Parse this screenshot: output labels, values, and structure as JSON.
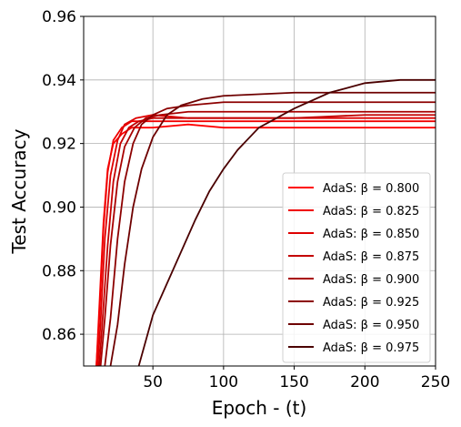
{
  "chart_data": {
    "type": "line",
    "xlabel": "Epoch - (t)",
    "ylabel": "Test Accuracy",
    "xlim": [
      1,
      250
    ],
    "ylim": [
      0.85,
      0.96
    ],
    "x_ticks": [
      50,
      100,
      150,
      200,
      250
    ],
    "y_ticks": [
      0.86,
      0.88,
      0.9,
      0.92,
      0.94,
      0.96
    ],
    "y_tick_labels": [
      "0.86",
      "0.88",
      "0.90",
      "0.92",
      "0.94",
      "0.96"
    ],
    "grid": true,
    "legend_position": "lower-right",
    "series": [
      {
        "name": "AdaS: β = 0.800",
        "color": "#ff0000",
        "x": [
          10,
          12,
          15,
          18,
          22,
          28,
          35,
          50,
          75,
          100,
          150,
          200,
          250
        ],
        "y": [
          0.85,
          0.868,
          0.895,
          0.912,
          0.92,
          0.923,
          0.925,
          0.925,
          0.926,
          0.925,
          0.925,
          0.925,
          0.925
        ]
      },
      {
        "name": "AdaS: β = 0.825",
        "color": "#f00000",
        "x": [
          10,
          12,
          15,
          18,
          22,
          28,
          35,
          50,
          75,
          100,
          150,
          200,
          250
        ],
        "y": [
          0.85,
          0.865,
          0.893,
          0.911,
          0.921,
          0.925,
          0.927,
          0.927,
          0.927,
          0.927,
          0.927,
          0.927,
          0.927
        ]
      },
      {
        "name": "AdaS: β = 0.850",
        "color": "#df0000",
        "x": [
          11,
          13,
          16,
          20,
          25,
          30,
          38,
          50,
          75,
          100,
          150,
          200,
          250
        ],
        "y": [
          0.85,
          0.864,
          0.89,
          0.91,
          0.921,
          0.926,
          0.928,
          0.929,
          0.928,
          0.928,
          0.928,
          0.928,
          0.928
        ]
      },
      {
        "name": "AdaS: β = 0.875",
        "color": "#c40000",
        "x": [
          12,
          14,
          18,
          22,
          27,
          33,
          40,
          50,
          75,
          100,
          150,
          200,
          250
        ],
        "y": [
          0.85,
          0.862,
          0.888,
          0.908,
          0.92,
          0.925,
          0.927,
          0.928,
          0.928,
          0.928,
          0.928,
          0.929,
          0.929
        ]
      },
      {
        "name": "AdaS: β = 0.900",
        "color": "#a80000",
        "x": [
          13,
          16,
          20,
          25,
          30,
          37,
          45,
          55,
          75,
          100,
          150,
          200,
          250
        ],
        "y": [
          0.85,
          0.865,
          0.888,
          0.908,
          0.919,
          0.925,
          0.928,
          0.929,
          0.93,
          0.93,
          0.93,
          0.93,
          0.93
        ]
      },
      {
        "name": "AdaS: β = 0.925",
        "color": "#8c0000",
        "x": [
          16,
          20,
          25,
          30,
          36,
          42,
          50,
          60,
          75,
          100,
          150,
          200,
          250
        ],
        "y": [
          0.85,
          0.865,
          0.89,
          0.908,
          0.92,
          0.926,
          0.929,
          0.931,
          0.932,
          0.933,
          0.933,
          0.933,
          0.933
        ]
      },
      {
        "name": "AdaS: β = 0.950",
        "color": "#6e0000",
        "x": [
          20,
          25,
          30,
          36,
          42,
          50,
          60,
          70,
          85,
          100,
          150,
          200,
          250
        ],
        "y": [
          0.85,
          0.863,
          0.882,
          0.9,
          0.912,
          0.922,
          0.929,
          0.932,
          0.934,
          0.935,
          0.936,
          0.936,
          0.936
        ]
      },
      {
        "name": "AdaS: β = 0.975",
        "color": "#4a0000",
        "x": [
          40,
          50,
          60,
          70,
          80,
          90,
          100,
          110,
          125,
          150,
          175,
          200,
          225,
          250
        ],
        "y": [
          0.85,
          0.866,
          0.876,
          0.886,
          0.896,
          0.905,
          0.912,
          0.918,
          0.925,
          0.931,
          0.936,
          0.939,
          0.94,
          0.94
        ]
      }
    ]
  }
}
